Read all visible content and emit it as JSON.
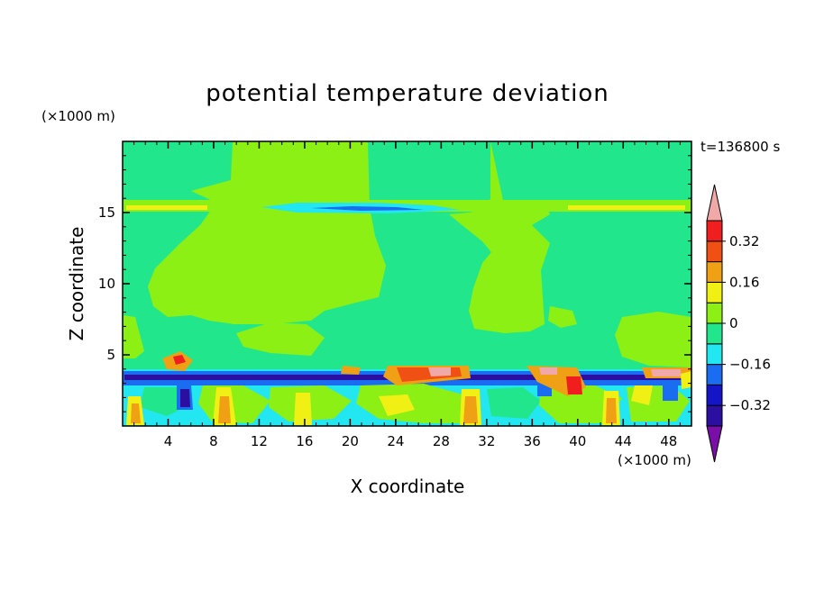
{
  "chart_data": {
    "type": "heatmap",
    "title": "potential temperature deviation",
    "xlabel": "X coordinate",
    "ylabel": "Z coordinate",
    "x_unit": "(×1000 m)",
    "y_unit": "(×1000 m)",
    "time_label": "t=136800 s",
    "xlim": [
      0,
      50
    ],
    "ylim": [
      0,
      20
    ],
    "x_ticks": [
      4,
      8,
      12,
      16,
      20,
      24,
      28,
      32,
      36,
      40,
      44,
      48
    ],
    "y_ticks": [
      5,
      10,
      15
    ],
    "colorbar": {
      "levels": [
        -0.4,
        -0.32,
        -0.24,
        -0.16,
        -0.08,
        0,
        0.08,
        0.16,
        0.24,
        0.32,
        0.4
      ],
      "labeled_ticks": [
        0.32,
        0.16,
        0,
        -0.16,
        -0.32
      ],
      "tick_labels": [
        "0.32",
        "0.16",
        "0",
        "−0.16",
        "−0.32"
      ],
      "colors": [
        "#7a0fa8",
        "#2a0fa0",
        "#1515c8",
        "#1a6cf0",
        "#22e6f0",
        "#22e68c",
        "#8cf014",
        "#f0f014",
        "#f0a014",
        "#f05014",
        "#f01e1e",
        "#f0a8a8"
      ],
      "extend": "both"
    }
  }
}
